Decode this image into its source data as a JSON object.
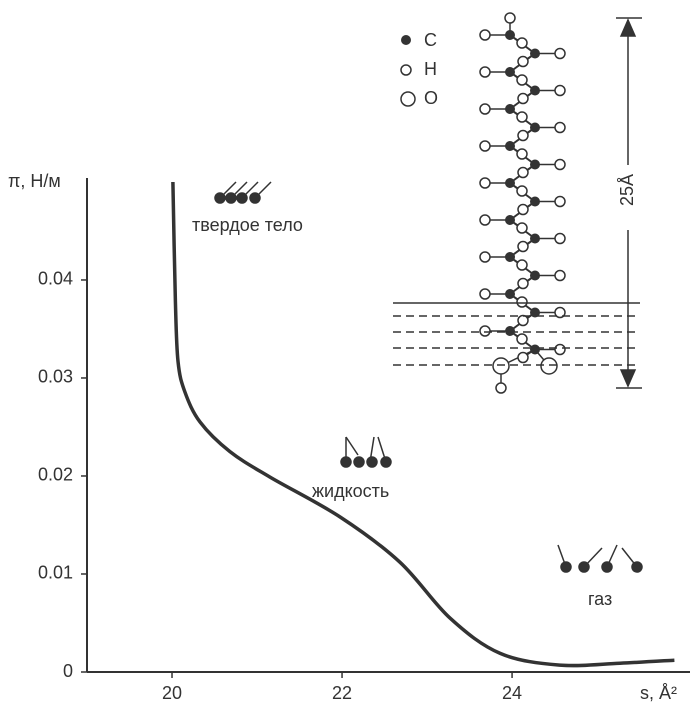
{
  "chart_data": {
    "type": "line",
    "x_label": "s, Å²",
    "y_label": "π, Н/м",
    "x": [
      20.01,
      20.04,
      20.07,
      20.15,
      20.33,
      20.68,
      21.15,
      21.98,
      22.68,
      23.27,
      23.86,
      24.56,
      25.27,
      25.91
    ],
    "series": [
      {
        "color": "#333333",
        "values": [
          0.05,
          0.0378,
          0.0317,
          0.0286,
          0.0255,
          0.0225,
          0.0199,
          0.0158,
          0.0112,
          0.0055,
          0.0019,
          0.0007,
          0.0009,
          0.0012
        ]
      }
    ],
    "xlim": [
      19,
      26.04
    ],
    "xticks": [
      20,
      22,
      24
    ],
    "ylim": [
      0,
      0.0502
    ],
    "yticks": [
      0,
      0.01,
      0.02,
      0.03,
      0.04
    ],
    "annotations": [
      "твердое тело",
      "жидкость",
      "газ"
    ],
    "legend_labels": [
      "C",
      "H",
      "O"
    ],
    "length_label": "25Å"
  }
}
